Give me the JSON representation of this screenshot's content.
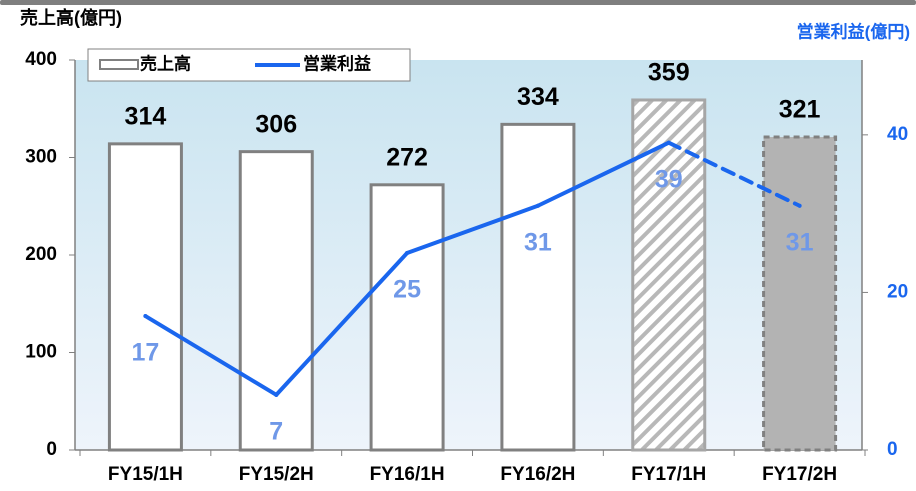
{
  "chart_data": {
    "type": "bar_line",
    "y_axis_label": "売上高(億円)",
    "y2_axis_label": "営業利益(億円)",
    "categories": [
      "FY15/1H",
      "FY15/2H",
      "FY16/1H",
      "FY16/2H",
      "FY17/1H",
      "FY17/2H"
    ],
    "series": [
      {
        "name": "売上高",
        "type": "bar",
        "color": "#808080",
        "values": [
          314,
          306,
          272,
          334,
          359,
          321
        ],
        "bar_styles": [
          "solid",
          "solid",
          "solid",
          "solid",
          "hatched",
          "dashed"
        ]
      },
      {
        "name": "営業利益",
        "type": "line",
        "axis": "y2",
        "color": "#1a66ee",
        "label_color": "#6f98e8",
        "values": [
          17,
          7,
          25,
          31,
          39,
          31
        ]
      }
    ],
    "ylim": [
      0,
      400
    ],
    "yticks": [
      0,
      100,
      200,
      300,
      400
    ],
    "y2lim": [
      0,
      49.5
    ],
    "y2ticks": [
      0,
      20,
      40
    ],
    "legend": "top-left"
  }
}
